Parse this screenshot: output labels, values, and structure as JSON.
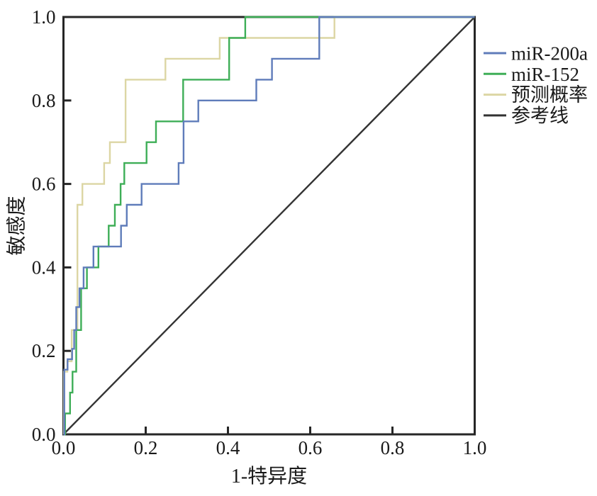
{
  "page": {
    "background": "#ffffff",
    "text_color": "#1a1a1a",
    "frame_color": "#262626"
  },
  "chart_data": {
    "type": "line",
    "subtype": "roc-step-curves",
    "title": "",
    "xlabel": "1-特异度",
    "ylabel": "敏感度",
    "xlim": [
      0,
      1
    ],
    "ylim": [
      0,
      1
    ],
    "grid": false,
    "legend_position": "right",
    "x_ticks": [
      0.0,
      0.2,
      0.4,
      0.6,
      0.8,
      1.0
    ],
    "y_ticks": [
      0.0,
      0.2,
      0.4,
      0.6,
      0.8,
      1.0
    ],
    "x_tick_labels": [
      "0.0",
      "0.2",
      "0.4",
      "0.6",
      "0.8",
      "1.0"
    ],
    "y_tick_labels": [
      "0.0",
      "0.2",
      "0.4",
      "0.6",
      "0.8",
      "1.0"
    ],
    "series": [
      {
        "name": "miR-200a",
        "color": "#5f7cba",
        "kind": "step",
        "points": [
          [
            0,
            0
          ],
          [
            0.002,
            0
          ],
          [
            0.002,
            0.155
          ],
          [
            0.01,
            0.155
          ],
          [
            0.01,
            0.18
          ],
          [
            0.021,
            0.18
          ],
          [
            0.021,
            0.205
          ],
          [
            0.026,
            0.205
          ],
          [
            0.026,
            0.25
          ],
          [
            0.031,
            0.25
          ],
          [
            0.031,
            0.305
          ],
          [
            0.039,
            0.305
          ],
          [
            0.039,
            0.35
          ],
          [
            0.049,
            0.35
          ],
          [
            0.049,
            0.4
          ],
          [
            0.073,
            0.4
          ],
          [
            0.073,
            0.45
          ],
          [
            0.14,
            0.45
          ],
          [
            0.14,
            0.5
          ],
          [
            0.154,
            0.5
          ],
          [
            0.154,
            0.55
          ],
          [
            0.19,
            0.55
          ],
          [
            0.19,
            0.6
          ],
          [
            0.28,
            0.6
          ],
          [
            0.28,
            0.65
          ],
          [
            0.292,
            0.65
          ],
          [
            0.292,
            0.75
          ],
          [
            0.328,
            0.75
          ],
          [
            0.328,
            0.8
          ],
          [
            0.469,
            0.8
          ],
          [
            0.469,
            0.85
          ],
          [
            0.507,
            0.85
          ],
          [
            0.507,
            0.9
          ],
          [
            0.622,
            0.9
          ],
          [
            0.622,
            1
          ],
          [
            1,
            1
          ]
        ]
      },
      {
        "name": "miR-152",
        "color": "#3eae57",
        "kind": "step",
        "points": [
          [
            0,
            0
          ],
          [
            0.004,
            0
          ],
          [
            0.004,
            0.05
          ],
          [
            0.016,
            0.05
          ],
          [
            0.016,
            0.1
          ],
          [
            0.022,
            0.1
          ],
          [
            0.022,
            0.15
          ],
          [
            0.031,
            0.15
          ],
          [
            0.031,
            0.25
          ],
          [
            0.043,
            0.25
          ],
          [
            0.043,
            0.35
          ],
          [
            0.057,
            0.35
          ],
          [
            0.057,
            0.4
          ],
          [
            0.085,
            0.4
          ],
          [
            0.085,
            0.45
          ],
          [
            0.11,
            0.45
          ],
          [
            0.11,
            0.5
          ],
          [
            0.125,
            0.5
          ],
          [
            0.125,
            0.55
          ],
          [
            0.139,
            0.55
          ],
          [
            0.139,
            0.6
          ],
          [
            0.148,
            0.6
          ],
          [
            0.148,
            0.65
          ],
          [
            0.202,
            0.65
          ],
          [
            0.202,
            0.7
          ],
          [
            0.225,
            0.7
          ],
          [
            0.225,
            0.75
          ],
          [
            0.291,
            0.75
          ],
          [
            0.291,
            0.85
          ],
          [
            0.403,
            0.85
          ],
          [
            0.403,
            0.95
          ],
          [
            0.442,
            0.95
          ],
          [
            0.442,
            1
          ],
          [
            1,
            1
          ]
        ]
      },
      {
        "name": "预测概率",
        "color": "#dcd6a4",
        "kind": "step",
        "points": [
          [
            0,
            0
          ],
          [
            0.001,
            0
          ],
          [
            0.001,
            0.15
          ],
          [
            0.0095,
            0.15
          ],
          [
            0.0095,
            0.175
          ],
          [
            0.02,
            0.175
          ],
          [
            0.02,
            0.25
          ],
          [
            0.034,
            0.25
          ],
          [
            0.034,
            0.55
          ],
          [
            0.046,
            0.55
          ],
          [
            0.046,
            0.6
          ],
          [
            0.099,
            0.6
          ],
          [
            0.099,
            0.65
          ],
          [
            0.113,
            0.65
          ],
          [
            0.113,
            0.7
          ],
          [
            0.151,
            0.7
          ],
          [
            0.151,
            0.85
          ],
          [
            0.248,
            0.85
          ],
          [
            0.248,
            0.9
          ],
          [
            0.38,
            0.9
          ],
          [
            0.38,
            0.95
          ],
          [
            0.659,
            0.95
          ],
          [
            0.659,
            1
          ],
          [
            1,
            1
          ]
        ]
      },
      {
        "name": "参考线",
        "color": "#333333",
        "kind": "diagonal-reference",
        "points": [
          [
            0,
            0
          ],
          [
            1,
            1
          ]
        ]
      }
    ]
  }
}
